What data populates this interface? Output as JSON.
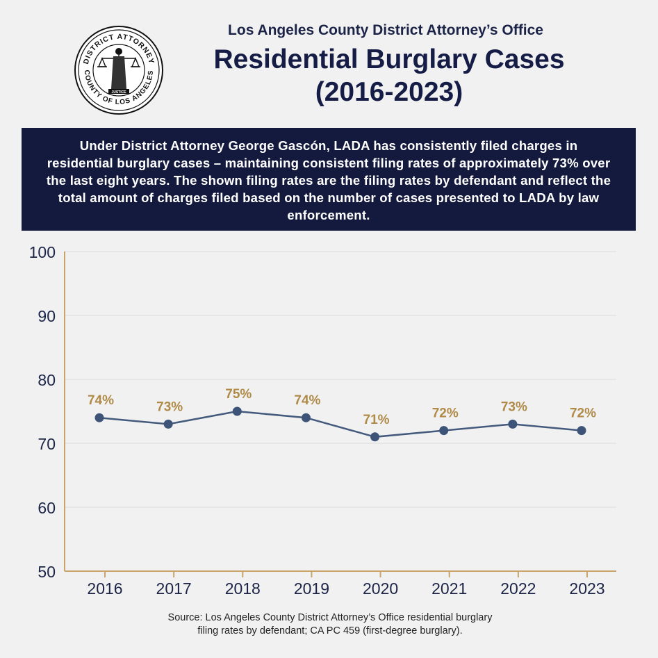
{
  "header": {
    "seal_name": "District Attorney County of Los Angeles seal",
    "seal_text_top": "DISTRICT ATTORNEY",
    "seal_text_bottom": "COUNTY OF LOS ANGELES",
    "seal_text_center": "JUSTICE",
    "office": "Los Angeles County District Attorney’s Office",
    "title_line1": "Residential Burglary Cases",
    "title_line2": "(2016-2023)"
  },
  "banner": {
    "text": "Under District Attorney George Gascón, LADA has consistently filed charges in residential burglary cases – maintaining consistent filing rates of approximately 73% over the last eight years. The shown filing rates are the filing rates by defendant and reflect the total amount of charges filed based on the number of cases presented to LADA by law enforcement."
  },
  "source": {
    "line1": "Source: Los Angeles County District Attorney’s Office residential burglary",
    "line2": "filing rates by defendant; CA PC 459 (first-degree burglary)."
  },
  "colors": {
    "navy": "#141a3e",
    "line": "#435a7c",
    "point": "#3d5478",
    "label_gold": "#b08a47",
    "axis_gold": "#c9a46a",
    "grid": "#dcdcdc",
    "tick_text": "#1b2447"
  },
  "chart_data": {
    "type": "line",
    "categories": [
      "2016",
      "2017",
      "2018",
      "2019",
      "2020",
      "2021",
      "2022",
      "2023"
    ],
    "series": [
      {
        "values": [
          74,
          73,
          75,
          74,
          71,
          72,
          73,
          72
        ]
      }
    ],
    "data_labels": [
      "74%",
      "73%",
      "75%",
      "74%",
      "71%",
      "72%",
      "73%",
      "72%"
    ],
    "yticks": [
      50,
      60,
      70,
      80,
      90,
      100
    ],
    "ylim": [
      50,
      100
    ],
    "grid": true,
    "title": "",
    "xlabel": "",
    "ylabel": ""
  }
}
